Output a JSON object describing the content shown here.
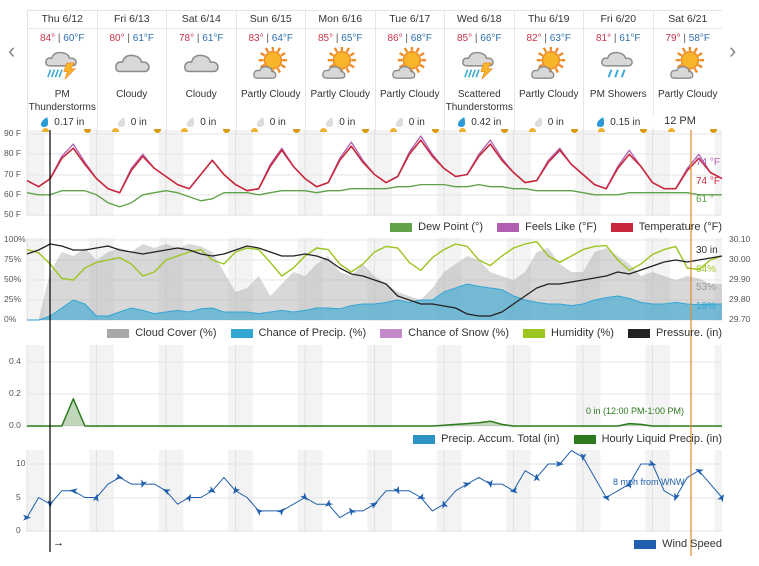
{
  "nav": {
    "prev_icon": "chevron-left-icon",
    "next_icon": "chevron-right-icon",
    "prev": "‹",
    "next": "›"
  },
  "days": [
    {
      "name": "Thu 6/12",
      "high": "84°",
      "low": "60°F",
      "icon": "thunderstorm",
      "condition": "PM Thunderstorms",
      "precip": "0.17 in",
      "wet": true
    },
    {
      "name": "Fri 6/13",
      "high": "80°",
      "low": "61°F",
      "icon": "cloudy",
      "condition": "Cloudy",
      "precip": "0 in",
      "wet": false
    },
    {
      "name": "Sat 6/14",
      "high": "78°",
      "low": "61°F",
      "icon": "cloudy",
      "condition": "Cloudy",
      "precip": "0 in",
      "wet": false
    },
    {
      "name": "Sun 6/15",
      "high": "83°",
      "low": "64°F",
      "icon": "partly-cloudy",
      "condition": "Partly Cloudy",
      "precip": "0 in",
      "wet": false
    },
    {
      "name": "Mon 6/16",
      "high": "85°",
      "low": "65°F",
      "icon": "partly-cloudy",
      "condition": "Partly Cloudy",
      "precip": "0 in",
      "wet": false
    },
    {
      "name": "Tue 6/17",
      "high": "86°",
      "low": "68°F",
      "icon": "partly-cloudy",
      "condition": "Partly Cloudy",
      "precip": "0 in",
      "wet": false
    },
    {
      "name": "Wed 6/18",
      "high": "85°",
      "low": "66°F",
      "icon": "thunderstorm",
      "condition": "Scattered Thunderstorms",
      "precip": "0.42 in",
      "wet": true
    },
    {
      "name": "Thu 6/19",
      "high": "82°",
      "low": "63°F",
      "icon": "partly-cloudy",
      "condition": "Partly Cloudy",
      "precip": "0 in",
      "wet": false
    },
    {
      "name": "Fri 6/20",
      "high": "81°",
      "low": "61°F",
      "icon": "showers",
      "condition": "PM Showers",
      "precip": "0.15 in",
      "wet": true
    },
    {
      "name": "Sat 6/21",
      "high": "79°",
      "low": "58°F",
      "icon": "partly-cloudy",
      "condition": "Partly Cloudy",
      "precip": "0 in",
      "wet": false
    }
  ],
  "cursor_label": "12 PM",
  "colors": {
    "temperature": "#c8283c",
    "feels_like": "#b060b0",
    "dew_point": "#5fa24a",
    "cloud_cover": "#a8a8a8",
    "precip_chance": "#33a6d4",
    "snow_chance": "#c58ac9",
    "humidity": "#9cc520",
    "pressure": "#222222",
    "accum_total": "#2a93c4",
    "hourly_precip": "#2d7a1e",
    "wind": "#1f5fad",
    "now_line": "#000000",
    "cursor_line": "#e08a30"
  },
  "chart_data": [
    {
      "type": "line",
      "x_step": "4 hours, Thu 6/12 12 AM to Sun 6/22 12 AM",
      "y_ticks": [
        "90 F",
        "80 F",
        "70 F",
        "60 F",
        "50 F"
      ],
      "ylim": [
        50,
        90
      ],
      "series": [
        {
          "name": "Temperature (°F)",
          "values": [
            67,
            64,
            68,
            78,
            83,
            75,
            68,
            63,
            61,
            72,
            79,
            73,
            69,
            65,
            63,
            70,
            77,
            70,
            65,
            62,
            63,
            74,
            82,
            74,
            68,
            64,
            66,
            77,
            84,
            76,
            70,
            66,
            69,
            80,
            87,
            79,
            73,
            69,
            70,
            79,
            85,
            77,
            71,
            66,
            67,
            76,
            82,
            75,
            70,
            65,
            63,
            73,
            80,
            74,
            66,
            63,
            63,
            72,
            78,
            71,
            68
          ]
        },
        {
          "name": "Feels Like (°F)",
          "values": [
            67,
            64,
            68,
            79,
            85,
            76,
            68,
            63,
            61,
            73,
            80,
            73,
            69,
            65,
            63,
            70,
            77,
            70,
            65,
            62,
            63,
            75,
            83,
            74,
            68,
            64,
            66,
            78,
            86,
            77,
            70,
            66,
            69,
            81,
            89,
            80,
            73,
            69,
            70,
            80,
            87,
            78,
            71,
            66,
            67,
            77,
            83,
            75,
            70,
            65,
            63,
            74,
            82,
            74,
            66,
            63,
            63,
            73,
            80,
            71,
            68
          ]
        },
        {
          "name": "Dew Point (°)",
          "values": [
            61,
            60,
            60,
            62,
            62,
            62,
            60,
            56,
            54,
            56,
            60,
            61,
            62,
            61,
            59,
            57,
            58,
            61,
            61,
            61,
            60,
            61,
            62,
            62,
            62,
            61,
            62,
            62,
            63,
            63,
            63,
            63,
            64,
            64,
            65,
            65,
            65,
            64,
            64,
            65,
            64,
            64,
            63,
            63,
            62,
            62,
            62,
            62,
            61,
            60,
            60,
            60,
            61,
            61,
            61,
            61,
            61,
            61,
            60,
            60,
            60
          ]
        }
      ],
      "cursor_values": {
        "feels_like": "74 °F",
        "temperature": "74 °F",
        "dew_point": "61 °"
      }
    },
    {
      "type": "area",
      "y_ticks": [
        "100%",
        "75%",
        "50%",
        "25%",
        "0%"
      ],
      "y2_ticks": [
        "30.10",
        "30.00",
        "29.90",
        "29.80",
        "29.70"
      ],
      "ylim": [
        0,
        100
      ],
      "y2lim": [
        29.7,
        30.1
      ],
      "series": [
        {
          "name": "Cloud Cover (%)",
          "values": [
            0,
            0,
            60,
            85,
            80,
            90,
            75,
            85,
            90,
            85,
            95,
            90,
            95,
            90,
            95,
            92,
            85,
            60,
            35,
            40,
            55,
            30,
            45,
            60,
            55,
            70,
            80,
            60,
            55,
            70,
            55,
            45,
            35,
            30,
            25,
            40,
            60,
            70,
            80,
            75,
            60,
            55,
            50,
            60,
            85,
            90,
            70,
            60,
            60,
            85,
            90,
            80,
            70,
            55,
            60,
            55,
            50,
            55,
            52,
            45,
            45
          ]
        },
        {
          "name": "Chance of Precip. (%)",
          "values": [
            0,
            0,
            5,
            15,
            25,
            20,
            5,
            5,
            10,
            15,
            12,
            8,
            10,
            12,
            10,
            14,
            15,
            10,
            10,
            10,
            8,
            10,
            12,
            10,
            12,
            15,
            15,
            14,
            18,
            20,
            20,
            22,
            25,
            22,
            25,
            25,
            35,
            40,
            45,
            42,
            40,
            38,
            30,
            25,
            22,
            20,
            20,
            18,
            20,
            25,
            28,
            30,
            27,
            22,
            20,
            20,
            22,
            20,
            19,
            20,
            20
          ]
        },
        {
          "name": "Chance of Snow (%)",
          "values": []
        },
        {
          "name": "Humidity (%)",
          "values": [
            88,
            84,
            70,
            52,
            50,
            65,
            72,
            75,
            78,
            70,
            55,
            60,
            75,
            80,
            85,
            88,
            75,
            70,
            85,
            90,
            88,
            72,
            55,
            65,
            80,
            90,
            88,
            70,
            60,
            70,
            85,
            92,
            90,
            72,
            62,
            78,
            88,
            95,
            92,
            75,
            68,
            80,
            90,
            95,
            98,
            80,
            72,
            80,
            88,
            92,
            93,
            75,
            62,
            70,
            82,
            88,
            92,
            65,
            63,
            75,
            80
          ]
        },
        {
          "name": "Pressure. (in)",
          "values": [
            30.03,
            30.05,
            30.08,
            30.07,
            30.05,
            30.05,
            30.06,
            30.07,
            30.05,
            30.04,
            30.03,
            30.04,
            30.05,
            30.06,
            30.05,
            30.03,
            30.02,
            30.03,
            30.05,
            30.07,
            30.06,
            30.04,
            30.02,
            30.02,
            30.03,
            30.02,
            30.0,
            29.96,
            29.93,
            29.92,
            29.9,
            29.88,
            29.82,
            29.8,
            29.78,
            29.78,
            29.77,
            29.76,
            29.73,
            29.72,
            29.72,
            29.74,
            29.78,
            29.82,
            29.86,
            29.88,
            29.88,
            29.89,
            29.9,
            29.91,
            29.92,
            29.94,
            29.93,
            29.95,
            29.97,
            29.99,
            30.0,
            29.99,
            30.0,
            30.01,
            30.02
          ]
        }
      ],
      "cursor_values": {
        "pressure": "30 in",
        "humidity": "64%",
        "cloud_cover": "53%",
        "precip_chance": "19%"
      }
    },
    {
      "type": "area",
      "y_ticks": [
        "0.4",
        "0.2",
        "0.0"
      ],
      "ylim": [
        0,
        0.5
      ],
      "series": [
        {
          "name": "Precip. Accum. Total (in)",
          "values": []
        },
        {
          "name": "Hourly Liquid Precip. (in)",
          "values": [
            0,
            0,
            0,
            0,
            0.17,
            0,
            0,
            0,
            0,
            0,
            0,
            0,
            0,
            0,
            0,
            0,
            0,
            0,
            0,
            0,
            0,
            0,
            0,
            0,
            0,
            0,
            0,
            0,
            0,
            0,
            0,
            0,
            0,
            0,
            0,
            0,
            0.005,
            0.01,
            0.015,
            0.02,
            0.03,
            0.01,
            0,
            0,
            0,
            0,
            0,
            0,
            0,
            0,
            0,
            0,
            0.015,
            0.01,
            0,
            0,
            0,
            0,
            0,
            0,
            0
          ]
        }
      ],
      "cursor_values": {
        "hourly_precip": "0 in (12:00 PM-1:00 PM)"
      }
    },
    {
      "type": "line",
      "y_ticks": [
        "10",
        "5",
        "0"
      ],
      "ylim": [
        0,
        12
      ],
      "series": [
        {
          "name": "Wind Speed",
          "values": [
            2,
            5,
            4,
            6,
            6,
            5,
            5,
            7,
            8,
            7,
            7,
            7,
            6,
            4,
            5,
            5,
            6,
            8,
            6,
            5,
            3,
            3,
            3,
            4,
            5,
            4,
            4,
            2,
            3,
            3,
            4,
            6,
            6,
            6,
            5,
            3,
            4,
            6,
            7,
            8,
            7,
            7,
            6,
            9,
            8,
            10,
            10,
            12,
            11,
            8,
            5,
            6,
            7,
            10,
            10,
            6,
            5,
            8,
            9,
            7,
            5
          ]
        }
      ],
      "cursor_values": {
        "wind": "8 mph from WNW"
      },
      "now_direction": "→"
    }
  ],
  "legends": [
    [
      {
        "label": "Dew Point (°)",
        "color": "#5fa24a"
      },
      {
        "label": "Feels Like (°F)",
        "color": "#b060b0"
      },
      {
        "label": "Temperature (°F)",
        "color": "#c8283c"
      }
    ],
    [
      {
        "label": "Cloud Cover (%)",
        "color": "#a8a8a8"
      },
      {
        "label": "Chance of Precip. (%)",
        "color": "#33a6d4"
      },
      {
        "label": "Chance of Snow (%)",
        "color": "#c58ac9"
      },
      {
        "label": "Humidity (%)",
        "color": "#9cc520"
      },
      {
        "label": "Pressure. (in)",
        "color": "#222222"
      }
    ],
    [
      {
        "label": "Precip. Accum. Total (in)",
        "color": "#2a93c4"
      },
      {
        "label": "Hourly Liquid Precip. (in)",
        "color": "#2d7a1e"
      }
    ],
    [
      {
        "label": "Wind Speed",
        "color": "#1f5fad"
      }
    ]
  ]
}
